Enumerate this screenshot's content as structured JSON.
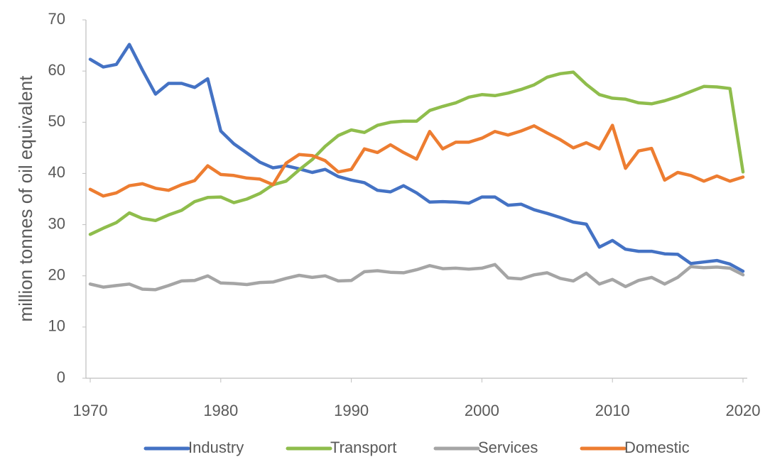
{
  "chart_data": {
    "type": "line",
    "y_label": "million tonnes of oil equivalent",
    "x": [
      1970,
      1971,
      1972,
      1973,
      1974,
      1975,
      1976,
      1977,
      1978,
      1979,
      1980,
      1981,
      1982,
      1983,
      1984,
      1985,
      1986,
      1987,
      1988,
      1989,
      1990,
      1991,
      1992,
      1993,
      1994,
      1995,
      1996,
      1997,
      1998,
      1999,
      2000,
      2001,
      2002,
      2003,
      2004,
      2005,
      2006,
      2007,
      2008,
      2009,
      2010,
      2011,
      2012,
      2013,
      2014,
      2015,
      2016,
      2017,
      2018,
      2019,
      2020
    ],
    "xlim": [
      1970,
      2020
    ],
    "xticks": [
      1970,
      1980,
      1990,
      2000,
      2010,
      2020
    ],
    "ylim": [
      0,
      70
    ],
    "yticks": [
      0,
      10,
      20,
      30,
      40,
      50,
      60,
      70
    ],
    "grid": false,
    "legend": "bottom",
    "series": [
      {
        "name": "Industry",
        "color": "#4472c4",
        "values": [
          62.3,
          60.8,
          61.3,
          65.2,
          60.2,
          55.5,
          57.6,
          57.6,
          56.8,
          58.5,
          48.3,
          45.8,
          44.0,
          42.2,
          41.1,
          41.5,
          40.9,
          40.2,
          40.8,
          39.4,
          38.7,
          38.2,
          36.7,
          36.4,
          37.6,
          36.2,
          34.4,
          34.5,
          34.4,
          34.2,
          35.4,
          35.4,
          33.8,
          34.0,
          32.9,
          32.2,
          31.4,
          30.5,
          30.1,
          25.6,
          26.9,
          25.2,
          24.8,
          24.8,
          24.3,
          24.2,
          22.4,
          22.7,
          23.0,
          22.3,
          20.9
        ]
      },
      {
        "name": "Transport",
        "color": "#8fbd4c",
        "values": [
          28.1,
          29.3,
          30.4,
          32.3,
          31.2,
          30.8,
          31.9,
          32.8,
          34.5,
          35.3,
          35.4,
          34.3,
          35.0,
          36.1,
          37.8,
          38.5,
          40.7,
          42.7,
          45.3,
          47.4,
          48.5,
          48.0,
          49.4,
          50.0,
          50.2,
          50.2,
          52.3,
          53.1,
          53.8,
          54.9,
          55.4,
          55.2,
          55.7,
          56.4,
          57.3,
          58.8,
          59.5,
          59.8,
          57.4,
          55.4,
          54.7,
          54.5,
          53.8,
          53.6,
          54.2,
          55.0,
          56.0,
          57.0,
          56.9,
          56.6,
          40.3
        ]
      },
      {
        "name": "Services",
        "color": "#a5a5a5",
        "values": [
          18.4,
          17.8,
          18.1,
          18.4,
          17.4,
          17.3,
          18.1,
          19.0,
          19.1,
          20.0,
          18.6,
          18.5,
          18.3,
          18.7,
          18.8,
          19.5,
          20.1,
          19.7,
          20.0,
          19.0,
          19.1,
          20.8,
          21.0,
          20.7,
          20.6,
          21.2,
          22.0,
          21.4,
          21.5,
          21.3,
          21.5,
          22.2,
          19.6,
          19.4,
          20.2,
          20.6,
          19.5,
          19.0,
          20.5,
          18.4,
          19.3,
          17.9,
          19.1,
          19.7,
          18.4,
          19.7,
          21.8,
          21.6,
          21.7,
          21.5,
          20.2
        ]
      },
      {
        "name": "Domestic",
        "color": "#ed7d31",
        "values": [
          36.9,
          35.6,
          36.2,
          37.6,
          38.0,
          37.1,
          36.7,
          37.8,
          38.6,
          41.5,
          39.8,
          39.6,
          39.1,
          38.9,
          37.8,
          42.0,
          43.7,
          43.5,
          42.5,
          40.3,
          40.8,
          44.8,
          44.1,
          45.6,
          44.1,
          42.8,
          48.2,
          44.8,
          46.1,
          46.1,
          46.9,
          48.2,
          47.5,
          48.3,
          49.3,
          47.9,
          46.6,
          45.0,
          46.0,
          44.8,
          49.4,
          41.0,
          44.4,
          44.9,
          38.7,
          40.2,
          39.6,
          38.5,
          39.5,
          38.5,
          39.3
        ]
      }
    ]
  }
}
